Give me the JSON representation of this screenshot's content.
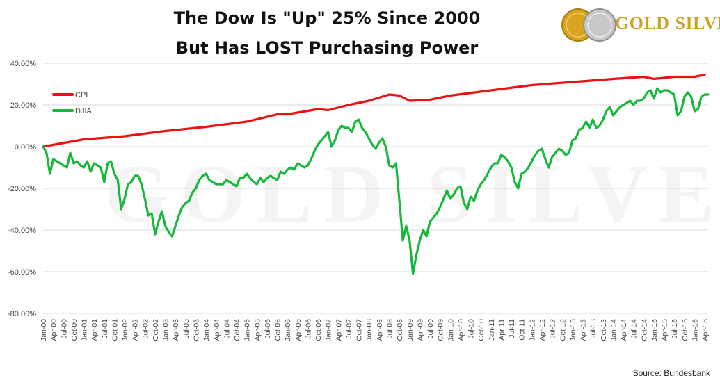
{
  "title_line1": "The Dow Is \"Up\" 25% Since 2000",
  "title_line2": "But Has LOST Purchasing Power",
  "brand": {
    "word1": "GOLD",
    "word2": "SILVER",
    "watermark": "GOLD SILVER"
  },
  "source": "Source: Bundesbank",
  "colors": {
    "cpi": "#ee1111",
    "djia": "#16b83a",
    "grid": "#d9d9d9",
    "brand": "#c9a227"
  },
  "chart_data": {
    "type": "line",
    "title": "The Dow Is \"Up\" 25% Since 2000 But Has LOST Purchasing Power",
    "ylim": [
      -0.8,
      0.4
    ],
    "yticks": [
      0.4,
      0.2,
      0.0,
      -0.2,
      -0.4,
      -0.6,
      -0.8
    ],
    "ytick_labels": [
      "40.00%",
      "20.00%",
      "0.00%",
      "-20.00%",
      "-40.00%",
      "-60.00%",
      "-80.00%"
    ],
    "grid": true,
    "legend_position": "top-left",
    "x_labels": [
      "Jan-00",
      "Apr-00",
      "Jul-00",
      "Oct-00",
      "Jan-01",
      "Apr-01",
      "Jul-01",
      "Oct-01",
      "Jan-02",
      "Apr-02",
      "Jul-02",
      "Oct-02",
      "Jan-03",
      "Apr-03",
      "Jul-03",
      "Oct-03",
      "Jan-04",
      "Apr-04",
      "Jul-04",
      "Oct-04",
      "Jan-05",
      "Apr-05",
      "Jul-05",
      "Oct-05",
      "Jan-06",
      "Apr-06",
      "Jul-06",
      "Oct-06",
      "Jan-07",
      "Apr-07",
      "Jul-07",
      "Oct-07",
      "Jan-08",
      "Apr-08",
      "Jul-08",
      "Oct-08",
      "Jan-09",
      "Apr-09",
      "Jul-09",
      "Oct-09",
      "Jan-10",
      "Apr-10",
      "Jul-10",
      "Oct-10",
      "Jan-11",
      "Apr-11",
      "Jul-11",
      "Oct-11",
      "Jan-12",
      "Apr-12",
      "Jul-12",
      "Oct-12",
      "Jan-13",
      "Apr-13",
      "Jul-13",
      "Oct-13",
      "Jan-14",
      "Apr-14",
      "Jul-14",
      "Oct-14",
      "Jan-15",
      "Apr-15",
      "Jul-15",
      "Oct-15",
      "Jan-16",
      "Apr-16"
    ],
    "series": [
      {
        "name": "CPI",
        "color": "#ee1111",
        "points": [
          [
            "Jan-00",
            0.0
          ],
          [
            "Jan-01",
            0.035
          ],
          [
            "Jan-02",
            0.05
          ],
          [
            "Jan-03",
            0.075
          ],
          [
            "Jan-04",
            0.095
          ],
          [
            "Jan-05",
            0.12
          ],
          [
            "Oct-05",
            0.155
          ],
          [
            "Jan-06",
            0.155
          ],
          [
            "Oct-06",
            0.18
          ],
          [
            "Jan-07",
            0.175
          ],
          [
            "Jul-07",
            0.2
          ],
          [
            "Jan-08",
            0.22
          ],
          [
            "Jul-08",
            0.25
          ],
          [
            "Oct-08",
            0.245
          ],
          [
            "Jan-09",
            0.22
          ],
          [
            "Jul-09",
            0.225
          ],
          [
            "Jan-10",
            0.245
          ],
          [
            "Jan-11",
            0.27
          ],
          [
            "Jan-12",
            0.295
          ],
          [
            "Jan-13",
            0.31
          ],
          [
            "Jan-14",
            0.325
          ],
          [
            "Oct-14",
            0.335
          ],
          [
            "Jan-15",
            0.325
          ],
          [
            "Jul-15",
            0.335
          ],
          [
            "Jan-16",
            0.335
          ],
          [
            "Apr-16",
            0.345
          ]
        ]
      },
      {
        "name": "DJIA",
        "color": "#16b83a",
        "points": [
          [
            "Jan-00",
            0.0
          ],
          [
            "Feb-00",
            -0.03
          ],
          [
            "Mar-00",
            -0.13
          ],
          [
            "Apr-00",
            -0.06
          ],
          [
            "Jun-00",
            -0.08
          ],
          [
            "Aug-00",
            -0.1
          ],
          [
            "Sep-00",
            -0.03
          ],
          [
            "Oct-00",
            -0.08
          ],
          [
            "Nov-00",
            -0.07
          ],
          [
            "Dec-00",
            -0.09
          ],
          [
            "Jan-01",
            -0.1
          ],
          [
            "Feb-01",
            -0.07
          ],
          [
            "Mar-01",
            -0.12
          ],
          [
            "Apr-01",
            -0.08
          ],
          [
            "Jun-01",
            -0.1
          ],
          [
            "Jul-01",
            -0.17
          ],
          [
            "Aug-01",
            -0.08
          ],
          [
            "Sep-01",
            -0.07
          ],
          [
            "Oct-01",
            -0.13
          ],
          [
            "Nov-01",
            -0.16
          ],
          [
            "Dec-01",
            -0.3
          ],
          [
            "Jan-02",
            -0.25
          ],
          [
            "Feb-02",
            -0.18
          ],
          [
            "Mar-02",
            -0.17
          ],
          [
            "Apr-02",
            -0.14
          ],
          [
            "May-02",
            -0.14
          ],
          [
            "Jun-02",
            -0.18
          ],
          [
            "Jul-02",
            -0.25
          ],
          [
            "Aug-02",
            -0.33
          ],
          [
            "Sep-02",
            -0.32
          ],
          [
            "Oct-02",
            -0.42
          ],
          [
            "Nov-02",
            -0.36
          ],
          [
            "Dec-02",
            -0.31
          ],
          [
            "Jan-03",
            -0.38
          ],
          [
            "Feb-03",
            -0.41
          ],
          [
            "Mar-03",
            -0.43
          ],
          [
            "Apr-03",
            -0.38
          ],
          [
            "May-03",
            -0.33
          ],
          [
            "Jun-03",
            -0.29
          ],
          [
            "Jul-03",
            -0.27
          ],
          [
            "Aug-03",
            -0.26
          ],
          [
            "Sep-03",
            -0.22
          ],
          [
            "Oct-03",
            -0.2
          ],
          [
            "Nov-03",
            -0.16
          ],
          [
            "Dec-03",
            -0.14
          ],
          [
            "Jan-04",
            -0.13
          ],
          [
            "Feb-04",
            -0.16
          ],
          [
            "Mar-04",
            -0.17
          ],
          [
            "Apr-04",
            -0.18
          ],
          [
            "Jun-04",
            -0.18
          ],
          [
            "Jul-04",
            -0.16
          ],
          [
            "Aug-04",
            -0.17
          ],
          [
            "Sep-04",
            -0.18
          ],
          [
            "Oct-04",
            -0.19
          ],
          [
            "Nov-04",
            -0.15
          ],
          [
            "Dec-04",
            -0.15
          ],
          [
            "Jan-05",
            -0.13
          ],
          [
            "Feb-05",
            -0.15
          ],
          [
            "Mar-05",
            -0.17
          ],
          [
            "Apr-05",
            -0.18
          ],
          [
            "May-05",
            -0.15
          ],
          [
            "Jun-05",
            -0.17
          ],
          [
            "Jul-05",
            -0.15
          ],
          [
            "Aug-05",
            -0.14
          ],
          [
            "Sep-05",
            -0.15
          ],
          [
            "Oct-05",
            -0.16
          ],
          [
            "Nov-05",
            -0.12
          ],
          [
            "Dec-05",
            -0.13
          ],
          [
            "Jan-06",
            -0.11
          ],
          [
            "Feb-06",
            -0.1
          ],
          [
            "Mar-06",
            -0.11
          ],
          [
            "Apr-06",
            -0.08
          ],
          [
            "May-06",
            -0.09
          ],
          [
            "Jun-06",
            -0.1
          ],
          [
            "Jul-06",
            -0.09
          ],
          [
            "Aug-06",
            -0.06
          ],
          [
            "Sep-06",
            -0.02
          ],
          [
            "Oct-06",
            0.01
          ],
          [
            "Nov-06",
            0.03
          ],
          [
            "Dec-06",
            0.05
          ],
          [
            "Jan-07",
            0.07
          ],
          [
            "Feb-07",
            0.0
          ],
          [
            "Mar-07",
            0.03
          ],
          [
            "Apr-07",
            0.08
          ],
          [
            "May-07",
            0.1
          ],
          [
            "Jun-07",
            0.09
          ],
          [
            "Jul-07",
            0.09
          ],
          [
            "Aug-07",
            0.07
          ],
          [
            "Sep-07",
            0.12
          ],
          [
            "Oct-07",
            0.13
          ],
          [
            "Nov-07",
            0.09
          ],
          [
            "Dec-07",
            0.07
          ],
          [
            "Jan-08",
            0.04
          ],
          [
            "Feb-08",
            0.01
          ],
          [
            "Mar-08",
            -0.01
          ],
          [
            "Apr-08",
            0.02
          ],
          [
            "May-08",
            0.04
          ],
          [
            "Jun-08",
            0.0
          ],
          [
            "Jul-08",
            -0.09
          ],
          [
            "Aug-08",
            -0.1
          ],
          [
            "Sep-08",
            -0.08
          ],
          [
            "Oct-08",
            -0.26
          ],
          [
            "Nov-08",
            -0.45
          ],
          [
            "Dec-08",
            -0.38
          ],
          [
            "Jan-09",
            -0.45
          ],
          [
            "Feb-09",
            -0.61
          ],
          [
            "Mar-09",
            -0.52
          ],
          [
            "Apr-09",
            -0.45
          ],
          [
            "May-09",
            -0.4
          ],
          [
            "Jun-09",
            -0.43
          ],
          [
            "Jul-09",
            -0.36
          ],
          [
            "Aug-09",
            -0.34
          ],
          [
            "Sep-09",
            -0.32
          ],
          [
            "Oct-09",
            -0.29
          ],
          [
            "Nov-09",
            -0.25
          ],
          [
            "Dec-09",
            -0.21
          ],
          [
            "Jan-10",
            -0.25
          ],
          [
            "Feb-10",
            -0.23
          ],
          [
            "Mar-10",
            -0.2
          ],
          [
            "Apr-10",
            -0.19
          ],
          [
            "May-10",
            -0.27
          ],
          [
            "Jun-10",
            -0.3
          ],
          [
            "Jul-10",
            -0.24
          ],
          [
            "Aug-10",
            -0.26
          ],
          [
            "Sep-10",
            -0.21
          ],
          [
            "Oct-10",
            -0.18
          ],
          [
            "Nov-10",
            -0.16
          ],
          [
            "Dec-10",
            -0.13
          ],
          [
            "Jan-11",
            -0.1
          ],
          [
            "Feb-11",
            -0.08
          ],
          [
            "Mar-11",
            -0.08
          ],
          [
            "Apr-11",
            -0.04
          ],
          [
            "May-11",
            -0.05
          ],
          [
            "Jun-11",
            -0.07
          ],
          [
            "Jul-11",
            -0.1
          ],
          [
            "Aug-11",
            -0.17
          ],
          [
            "Sep-11",
            -0.2
          ],
          [
            "Oct-11",
            -0.13
          ],
          [
            "Nov-11",
            -0.12
          ],
          [
            "Dec-11",
            -0.1
          ],
          [
            "Jan-12",
            -0.07
          ],
          [
            "Feb-12",
            -0.04
          ],
          [
            "Mar-12",
            -0.02
          ],
          [
            "Apr-12",
            -0.01
          ],
          [
            "May-12",
            -0.06
          ],
          [
            "Jun-12",
            -0.1
          ],
          [
            "Jul-12",
            -0.05
          ],
          [
            "Aug-12",
            -0.03
          ],
          [
            "Sep-12",
            -0.01
          ],
          [
            "Oct-12",
            -0.02
          ],
          [
            "Nov-12",
            -0.04
          ],
          [
            "Dec-12",
            -0.03
          ],
          [
            "Jan-13",
            0.03
          ],
          [
            "Feb-13",
            0.04
          ],
          [
            "Mar-13",
            0.08
          ],
          [
            "Apr-13",
            0.09
          ],
          [
            "May-13",
            0.12
          ],
          [
            "Jun-13",
            0.09
          ],
          [
            "Jul-13",
            0.13
          ],
          [
            "Aug-13",
            0.09
          ],
          [
            "Sep-13",
            0.1
          ],
          [
            "Oct-13",
            0.13
          ],
          [
            "Nov-13",
            0.17
          ],
          [
            "Dec-13",
            0.19
          ],
          [
            "Jan-14",
            0.15
          ],
          [
            "Feb-14",
            0.17
          ],
          [
            "Mar-14",
            0.19
          ],
          [
            "Apr-14",
            0.2
          ],
          [
            "May-14",
            0.21
          ],
          [
            "Jun-14",
            0.22
          ],
          [
            "Jul-14",
            0.2
          ],
          [
            "Aug-14",
            0.22
          ],
          [
            "Sep-14",
            0.22
          ],
          [
            "Oct-14",
            0.23
          ],
          [
            "Nov-14",
            0.26
          ],
          [
            "Dec-14",
            0.27
          ],
          [
            "Jan-15",
            0.23
          ],
          [
            "Feb-15",
            0.28
          ],
          [
            "Mar-15",
            0.26
          ],
          [
            "Apr-15",
            0.27
          ],
          [
            "May-15",
            0.27
          ],
          [
            "Jun-15",
            0.26
          ],
          [
            "Jul-15",
            0.25
          ],
          [
            "Aug-15",
            0.15
          ],
          [
            "Sep-15",
            0.17
          ],
          [
            "Oct-15",
            0.24
          ],
          [
            "Nov-15",
            0.26
          ],
          [
            "Dec-15",
            0.24
          ],
          [
            "Jan-16",
            0.17
          ],
          [
            "Feb-16",
            0.18
          ],
          [
            "Mar-16",
            0.24
          ],
          [
            "Apr-16",
            0.25
          ],
          [
            "May-16",
            0.25
          ]
        ]
      }
    ]
  }
}
